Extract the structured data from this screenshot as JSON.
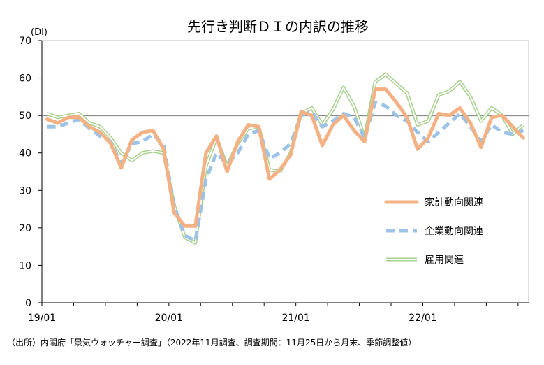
{
  "chart_data": {
    "type": "line",
    "title": "先行き判断ＤＩの内訳の推移",
    "ylabel": "(DI)",
    "ylim": [
      0,
      70
    ],
    "yticks": [
      0,
      10,
      20,
      30,
      40,
      50,
      60,
      70
    ],
    "xtick_labels": [
      "19/01",
      "20/01",
      "21/01",
      "22/01"
    ],
    "xtick_index": [
      0,
      12,
      24,
      36
    ],
    "reference_line": 50,
    "grid": false,
    "legend_position": "right-middle",
    "series": [
      {
        "name": "家計動向関連",
        "style": "solid-thick",
        "color": "#F4B183",
        "values": [
          49.0,
          48.0,
          49.5,
          49.5,
          47.0,
          45.5,
          42.5,
          36.0,
          43.5,
          45.5,
          46.0,
          41.0,
          24.0,
          20.5,
          20.5,
          40.0,
          44.5,
          35.0,
          43.0,
          47.5,
          47.0,
          33.0,
          35.5,
          39.5,
          51.0,
          50.0,
          42.0,
          47.5,
          50.0,
          46.0,
          43.0,
          57.0,
          57.0,
          53.5,
          49.5,
          41.0,
          44.0,
          50.5,
          50.0,
          52.0,
          48.0,
          41.5,
          49.5,
          50.0,
          47.0,
          44.0
        ]
      },
      {
        "name": "企業動向関連",
        "style": "dashed-thick",
        "color": "#9DC3E6",
        "values": [
          47.0,
          47.0,
          48.0,
          49.0,
          46.5,
          44.5,
          43.0,
          37.0,
          42.5,
          43.0,
          45.0,
          42.0,
          26.0,
          18.0,
          16.5,
          33.0,
          40.0,
          37.0,
          40.0,
          45.0,
          46.0,
          38.5,
          40.0,
          42.5,
          50.0,
          51.0,
          47.0,
          48.5,
          50.5,
          49.5,
          44.0,
          53.5,
          52.5,
          50.0,
          48.5,
          45.5,
          43.0,
          45.5,
          48.0,
          50.5,
          47.0,
          43.0,
          47.5,
          45.5,
          45.0,
          46.0
        ]
      },
      {
        "name": "雇用関連",
        "style": "double-line",
        "color": "#A9D18E",
        "values": [
          50.5,
          49.5,
          50.0,
          50.5,
          48.0,
          47.0,
          44.0,
          40.0,
          38.0,
          40.0,
          40.5,
          40.0,
          26.0,
          17.5,
          16.0,
          36.5,
          44.0,
          36.5,
          42.5,
          46.5,
          47.0,
          35.5,
          35.0,
          40.0,
          50.5,
          52.0,
          47.5,
          51.5,
          57.5,
          52.5,
          44.0,
          59.0,
          61.0,
          58.5,
          56.0,
          47.5,
          48.5,
          55.5,
          56.5,
          59.0,
          55.0,
          48.5,
          52.0,
          50.0,
          45.0,
          47.5
        ]
      }
    ]
  },
  "source_note": "（出所）内閣府「景気ウォッチャー調査」（2022年11月調査、調査期間：11月25日から月末、季節調整値）"
}
